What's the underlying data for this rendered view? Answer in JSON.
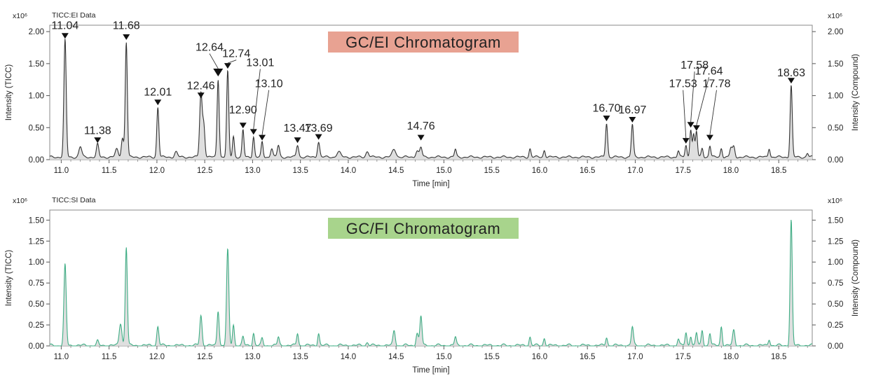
{
  "chart_data": [
    {
      "type": "line",
      "panel": "top",
      "data_label": "TICC:EI Data",
      "title": "GC/EI Chromatogram",
      "title_bg": "#e8a292",
      "xlabel": "Time [min]",
      "ylabel": "Intensity (TICC)",
      "ylabel_right": "Intensity (Compound)",
      "y_scale_label": "x10⁶",
      "xlim": [
        10.88,
        18.85
      ],
      "ylim": [
        0,
        2.1
      ],
      "xticks": [
        "11.0",
        "11.5",
        "12.0",
        "12.5",
        "13.0",
        "13.5",
        "14.0",
        "14.5",
        "15.0",
        "15.5",
        "16.0",
        "16.5",
        "17.0",
        "17.5",
        "18.0",
        "18.5"
      ],
      "yticks": [
        "0.00",
        "0.50",
        "1.00",
        "1.50",
        "2.00"
      ],
      "line_color": "#333333",
      "fill_color": "#d9d9d9",
      "baseline": 0.04,
      "peaks": [
        {
          "x": 11.04,
          "y": 1.83,
          "w": 0.012
        },
        {
          "x": 11.2,
          "y": 0.16,
          "w": 0.015
        },
        {
          "x": 11.38,
          "y": 0.2,
          "w": 0.012
        },
        {
          "x": 11.58,
          "y": 0.12,
          "w": 0.015
        },
        {
          "x": 11.64,
          "y": 0.3,
          "w": 0.012
        },
        {
          "x": 11.68,
          "y": 1.8,
          "w": 0.011
        },
        {
          "x": 12.01,
          "y": 0.78,
          "w": 0.011
        },
        {
          "x": 12.2,
          "y": 0.08,
          "w": 0.015
        },
        {
          "x": 12.46,
          "y": 1.0,
          "w": 0.013
        },
        {
          "x": 12.49,
          "y": 0.5,
          "w": 0.012
        },
        {
          "x": 12.64,
          "y": 1.22,
          "w": 0.011
        },
        {
          "x": 12.74,
          "y": 1.34,
          "w": 0.011
        },
        {
          "x": 12.8,
          "y": 0.33,
          "w": 0.01
        },
        {
          "x": 12.9,
          "y": 0.42,
          "w": 0.01
        },
        {
          "x": 13.01,
          "y": 0.32,
          "w": 0.01
        },
        {
          "x": 13.1,
          "y": 0.23,
          "w": 0.01
        },
        {
          "x": 13.2,
          "y": 0.14,
          "w": 0.012
        },
        {
          "x": 13.27,
          "y": 0.18,
          "w": 0.012
        },
        {
          "x": 13.47,
          "y": 0.19,
          "w": 0.012
        },
        {
          "x": 13.69,
          "y": 0.24,
          "w": 0.012
        },
        {
          "x": 13.9,
          "y": 0.08,
          "w": 0.02
        },
        {
          "x": 14.2,
          "y": 0.09,
          "w": 0.015
        },
        {
          "x": 14.48,
          "y": 0.12,
          "w": 0.02
        },
        {
          "x": 14.72,
          "y": 0.1,
          "w": 0.015
        },
        {
          "x": 14.76,
          "y": 0.15,
          "w": 0.012
        },
        {
          "x": 15.12,
          "y": 0.12,
          "w": 0.01
        },
        {
          "x": 15.9,
          "y": 0.13,
          "w": 0.01
        },
        {
          "x": 16.05,
          "y": 0.11,
          "w": 0.01
        },
        {
          "x": 16.7,
          "y": 0.53,
          "w": 0.011
        },
        {
          "x": 16.97,
          "y": 0.51,
          "w": 0.011
        },
        {
          "x": 17.45,
          "y": 0.1,
          "w": 0.01
        },
        {
          "x": 17.53,
          "y": 0.18,
          "w": 0.01
        },
        {
          "x": 17.58,
          "y": 0.44,
          "w": 0.01
        },
        {
          "x": 17.61,
          "y": 0.35,
          "w": 0.01
        },
        {
          "x": 17.64,
          "y": 0.4,
          "w": 0.01
        },
        {
          "x": 17.7,
          "y": 0.14,
          "w": 0.01
        },
        {
          "x": 17.78,
          "y": 0.18,
          "w": 0.01
        },
        {
          "x": 17.9,
          "y": 0.14,
          "w": 0.01
        },
        {
          "x": 18.0,
          "y": 0.14,
          "w": 0.012
        },
        {
          "x": 18.03,
          "y": 0.16,
          "w": 0.012
        },
        {
          "x": 18.4,
          "y": 0.14,
          "w": 0.01
        },
        {
          "x": 18.63,
          "y": 1.12,
          "w": 0.011
        },
        {
          "x": 18.8,
          "y": 0.06,
          "w": 0.01
        }
      ],
      "annotations": [
        {
          "label": "11.04",
          "x": 11.04,
          "y": 1.89,
          "lx": 11.04,
          "ly": 2.04,
          "size": "small"
        },
        {
          "label": "11.38",
          "x": 11.38,
          "y": 0.26,
          "lx": 11.38,
          "ly": 0.4,
          "size": "small"
        },
        {
          "label": "11.68",
          "x": 11.68,
          "y": 1.87,
          "lx": 11.68,
          "ly": 2.04,
          "size": "small"
        },
        {
          "label": "12.01",
          "x": 12.01,
          "y": 0.85,
          "lx": 12.01,
          "ly": 1.0,
          "size": "small"
        },
        {
          "label": "12.46",
          "x": 12.46,
          "y": 0.96,
          "lx": 12.46,
          "ly": 1.1,
          "size": "small"
        },
        {
          "label": "12.64",
          "x": 12.64,
          "y": 1.3,
          "lx": 12.55,
          "ly": 1.7,
          "size": "large"
        },
        {
          "label": "12.74",
          "x": 12.74,
          "y": 1.42,
          "lx": 12.83,
          "ly": 1.6,
          "size": "small"
        },
        {
          "label": "12.90",
          "x": 12.9,
          "y": 0.49,
          "lx": 12.9,
          "ly": 0.72,
          "size": "small"
        },
        {
          "label": "13.01",
          "x": 13.01,
          "y": 0.39,
          "lx": 13.08,
          "ly": 1.46,
          "size": "small"
        },
        {
          "label": "13.10",
          "x": 13.1,
          "y": 0.3,
          "lx": 13.17,
          "ly": 1.13,
          "size": "small"
        },
        {
          "label": "13.47",
          "x": 13.47,
          "y": 0.26,
          "lx": 13.47,
          "ly": 0.44,
          "size": "small"
        },
        {
          "label": "13.69",
          "x": 13.69,
          "y": 0.31,
          "lx": 13.69,
          "ly": 0.44,
          "size": "small"
        },
        {
          "label": "14.76",
          "x": 14.76,
          "y": 0.3,
          "lx": 14.76,
          "ly": 0.47,
          "size": "small"
        },
        {
          "label": "16.70",
          "x": 16.7,
          "y": 0.6,
          "lx": 16.7,
          "ly": 0.75,
          "size": "small"
        },
        {
          "label": "16.97",
          "x": 16.97,
          "y": 0.58,
          "lx": 16.97,
          "ly": 0.72,
          "size": "small"
        },
        {
          "label": "17.53",
          "x": 17.53,
          "y": 0.25,
          "lx": 17.5,
          "ly": 1.13,
          "size": "small"
        },
        {
          "label": "17.58",
          "x": 17.58,
          "y": 0.5,
          "lx": 17.62,
          "ly": 1.42,
          "size": "small"
        },
        {
          "label": "17.64",
          "x": 17.64,
          "y": 0.45,
          "lx": 17.77,
          "ly": 1.33,
          "size": "small"
        },
        {
          "label": "17.78",
          "x": 17.78,
          "y": 0.3,
          "lx": 17.85,
          "ly": 1.13,
          "size": "small"
        },
        {
          "label": "18.63",
          "x": 18.63,
          "y": 1.19,
          "lx": 18.63,
          "ly": 1.3,
          "size": "small"
        }
      ]
    },
    {
      "type": "line",
      "panel": "bottom",
      "data_label": "TICC:SI Data",
      "title": "GC/FI Chromatogram",
      "title_bg": "#a8d48c",
      "xlabel": "Time [min]",
      "ylabel": "Intensity (TICC)",
      "ylabel_right": "Intensity (Compound)",
      "y_scale_label": "x10⁶",
      "xlim": [
        10.88,
        18.85
      ],
      "ylim": [
        0,
        1.62
      ],
      "xticks": [
        "11.0",
        "11.5",
        "12.0",
        "12.5",
        "13.0",
        "13.5",
        "14.0",
        "14.5",
        "15.0",
        "15.5",
        "16.0",
        "16.5",
        "17.0",
        "17.5",
        "18.0",
        "18.5"
      ],
      "yticks": [
        "0.00",
        "0.25",
        "0.50",
        "0.75",
        "1.00",
        "1.25",
        "1.50"
      ],
      "line_color": "#3fae85",
      "fill_color": "#d9d9d9",
      "baseline": 0.005,
      "peaks": [
        {
          "x": 11.04,
          "y": 0.96,
          "w": 0.012
        },
        {
          "x": 11.38,
          "y": 0.05,
          "w": 0.01
        },
        {
          "x": 11.62,
          "y": 0.27,
          "w": 0.014
        },
        {
          "x": 11.68,
          "y": 1.18,
          "w": 0.011
        },
        {
          "x": 12.01,
          "y": 0.23,
          "w": 0.011
        },
        {
          "x": 12.46,
          "y": 0.36,
          "w": 0.012
        },
        {
          "x": 12.64,
          "y": 0.42,
          "w": 0.011
        },
        {
          "x": 12.74,
          "y": 1.14,
          "w": 0.012
        },
        {
          "x": 12.8,
          "y": 0.25,
          "w": 0.01
        },
        {
          "x": 12.9,
          "y": 0.1,
          "w": 0.01
        },
        {
          "x": 13.01,
          "y": 0.15,
          "w": 0.01
        },
        {
          "x": 13.1,
          "y": 0.08,
          "w": 0.01
        },
        {
          "x": 13.27,
          "y": 0.1,
          "w": 0.01
        },
        {
          "x": 13.47,
          "y": 0.15,
          "w": 0.01
        },
        {
          "x": 13.69,
          "y": 0.15,
          "w": 0.01
        },
        {
          "x": 14.2,
          "y": 0.04,
          "w": 0.012
        },
        {
          "x": 14.48,
          "y": 0.18,
          "w": 0.012
        },
        {
          "x": 14.72,
          "y": 0.15,
          "w": 0.012
        },
        {
          "x": 14.76,
          "y": 0.35,
          "w": 0.011
        },
        {
          "x": 15.12,
          "y": 0.1,
          "w": 0.01
        },
        {
          "x": 15.9,
          "y": 0.1,
          "w": 0.01
        },
        {
          "x": 16.05,
          "y": 0.09,
          "w": 0.01
        },
        {
          "x": 16.7,
          "y": 0.1,
          "w": 0.01
        },
        {
          "x": 16.97,
          "y": 0.22,
          "w": 0.011
        },
        {
          "x": 17.45,
          "y": 0.08,
          "w": 0.01
        },
        {
          "x": 17.53,
          "y": 0.15,
          "w": 0.01
        },
        {
          "x": 17.58,
          "y": 0.12,
          "w": 0.01
        },
        {
          "x": 17.64,
          "y": 0.15,
          "w": 0.01
        },
        {
          "x": 17.7,
          "y": 0.18,
          "w": 0.01
        },
        {
          "x": 17.78,
          "y": 0.15,
          "w": 0.01
        },
        {
          "x": 17.9,
          "y": 0.23,
          "w": 0.01
        },
        {
          "x": 18.03,
          "y": 0.18,
          "w": 0.012
        },
        {
          "x": 18.4,
          "y": 0.08,
          "w": 0.01
        },
        {
          "x": 18.63,
          "y": 1.5,
          "w": 0.011
        }
      ],
      "annotations": []
    }
  ]
}
